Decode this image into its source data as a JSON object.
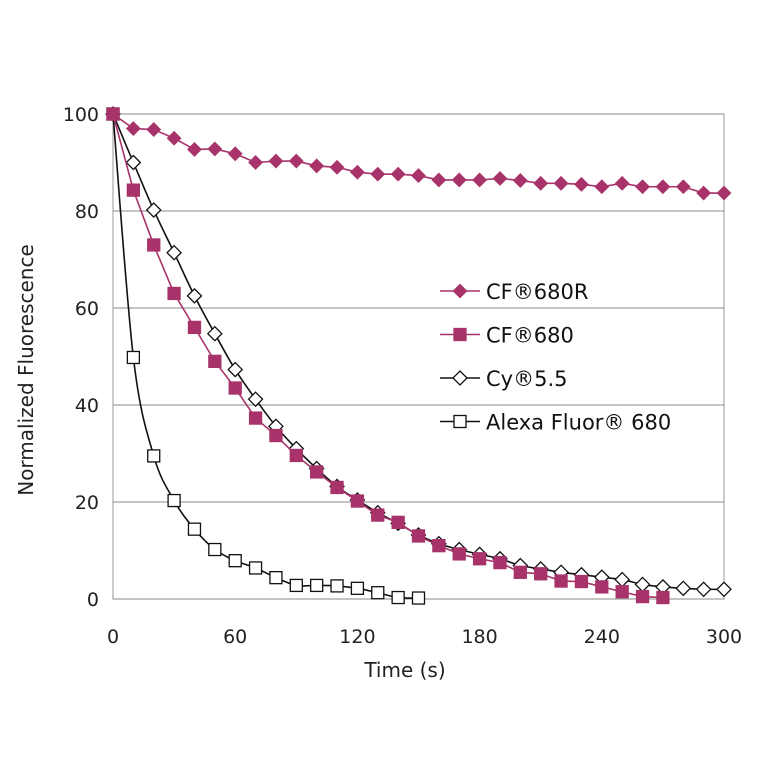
{
  "chart_data": {
    "type": "line",
    "xlabel": "Time (s)",
    "ylabel": "Normalized Fluorescence",
    "xlim": [
      0,
      300
    ],
    "ylim": [
      0,
      100
    ],
    "xticks": [
      0,
      60,
      120,
      180,
      240,
      300
    ],
    "yticks": [
      0,
      20,
      40,
      60,
      80,
      100
    ],
    "grid": "horizontal",
    "legend_position": "center-right",
    "series": [
      {
        "name": "CF®680R",
        "color": "#a8336a",
        "marker": "filled-diamond",
        "smooth": false,
        "x": [
          0,
          10,
          20,
          30,
          40,
          50,
          60,
          70,
          80,
          90,
          100,
          110,
          120,
          130,
          140,
          150,
          160,
          170,
          180,
          190,
          200,
          210,
          220,
          230,
          240,
          250,
          260,
          270,
          280,
          290,
          300
        ],
        "y": [
          100,
          97,
          96.8,
          95,
          92.7,
          92.8,
          91.8,
          90,
          90.3,
          90.3,
          89.3,
          89,
          88,
          87.6,
          87.6,
          87.3,
          86.4,
          86.4,
          86.4,
          86.7,
          86.3,
          85.7,
          85.7,
          85.5,
          85,
          85.7,
          85,
          85,
          85,
          83.7,
          83.7
        ]
      },
      {
        "name": "CF®680",
        "color": "#a8336a",
        "marker": "filled-square",
        "smooth": false,
        "x": [
          0,
          10,
          20,
          30,
          40,
          50,
          60,
          70,
          80,
          90,
          100,
          110,
          120,
          130,
          140,
          150,
          160,
          170,
          180,
          190,
          200,
          210,
          220,
          230,
          240,
          250,
          260,
          270
        ],
        "y": [
          100,
          84.3,
          73,
          63,
          56,
          49,
          43.5,
          37.3,
          33.7,
          29.6,
          26.2,
          23,
          20.2,
          17.3,
          15.8,
          13,
          11,
          9.3,
          8.3,
          7.5,
          5.5,
          5.2,
          3.7,
          3.6,
          2.5,
          1.5,
          0.5,
          0.3
        ]
      },
      {
        "name": "Cy®5.5",
        "color": "#111111",
        "marker": "open-diamond",
        "smooth": true,
        "x": [
          0,
          10,
          20,
          30,
          40,
          50,
          60,
          70,
          80,
          90,
          100,
          110,
          120,
          130,
          140,
          150,
          160,
          170,
          180,
          190,
          200,
          210,
          220,
          230,
          240,
          250,
          260,
          270,
          280,
          290,
          300
        ],
        "y": [
          100,
          90,
          80.2,
          71.4,
          62.5,
          54.7,
          47.3,
          41.2,
          35.6,
          31,
          26.9,
          23.2,
          20.4,
          17.8,
          15.6,
          13.2,
          11.4,
          10.2,
          9.2,
          8.3,
          6.9,
          6.2,
          5.5,
          5,
          4.5,
          4,
          3,
          2.5,
          2.2,
          2,
          2
        ]
      },
      {
        "name": "Alexa Fluor®  680",
        "color": "#111111",
        "marker": "open-square",
        "smooth": true,
        "x": [
          0,
          10,
          20,
          30,
          40,
          50,
          60,
          70,
          80,
          90,
          100,
          110,
          120,
          130,
          140,
          150
        ],
        "y": [
          100,
          49.8,
          29.5,
          20.3,
          14.4,
          10.2,
          7.9,
          6.4,
          4.4,
          2.8,
          2.8,
          2.7,
          2.2,
          1.3,
          0.3,
          0.2
        ]
      }
    ]
  }
}
